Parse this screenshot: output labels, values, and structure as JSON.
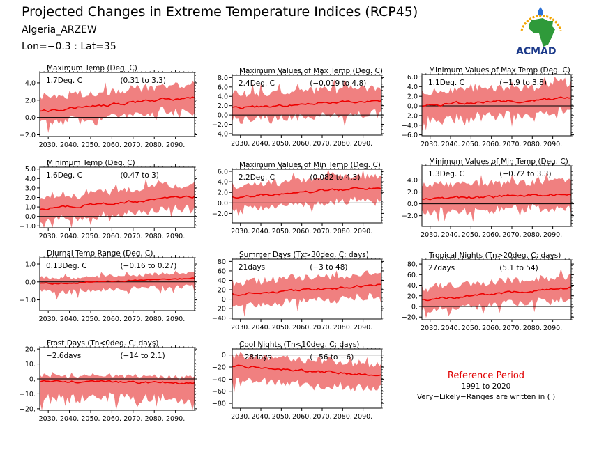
{
  "header": {
    "title": "Projected Changes in Extreme Temperature Indices (RCP45)",
    "location": "Algeria_ARZEW",
    "coords": "Lon=−0.3 : Lat=35"
  },
  "logo": {
    "text": "ACMAD"
  },
  "reference": {
    "title": "Reference Period",
    "period": "1991 to 2020",
    "note": "Very−Likely−Ranges are written in ( )"
  },
  "colors": {
    "band": "#f08080",
    "line": "#ee0000",
    "zero": "#000000"
  },
  "chart_data": [
    {
      "type": "area",
      "title": "Maximum Temp (Deg. C)",
      "value_label": "1.7Deg. C",
      "range_label": "(0.31 to 3.3)",
      "x_start": 2026,
      "x_end": 2099,
      "xticks": [
        2030,
        2040,
        2050,
        2060,
        2070,
        2080,
        2090
      ],
      "xtick_labels": [
        "2030.",
        "2040.",
        "2050.",
        "2060.",
        "2070.",
        "2080.",
        "2090."
      ],
      "ylim": [
        -2.2,
        5.2
      ],
      "yticks": [
        -2,
        0,
        2,
        4
      ],
      "ytick_labels": [
        "−2.0",
        "0.0",
        "2.0",
        "4.0"
      ],
      "mean_start": 0.7,
      "mean_end": 2.4,
      "lower_offset": 1.4,
      "upper_offset": 1.5,
      "seed": 1
    },
    {
      "type": "area",
      "title": "Maximum Values of Max Temp (Deg. C)",
      "value_label": "2.4Deg. C",
      "range_label": "(−0.019 to 4.8)",
      "x_start": 2026,
      "x_end": 2099,
      "xticks": [
        2030,
        2040,
        2050,
        2060,
        2070,
        2080,
        2090
      ],
      "xtick_labels": [
        "2030.",
        "2040.",
        "2050.",
        "2060.",
        "2070.",
        "2080.",
        "2090."
      ],
      "ylim": [
        -4.3,
        8.5
      ],
      "yticks": [
        -4,
        -2,
        0,
        2,
        4,
        6,
        8
      ],
      "ytick_labels": [
        "−4.0",
        "−2.0",
        "0.0",
        "2.0",
        "4.0",
        "6.0",
        "8.0"
      ],
      "mean_start": 1.5,
      "mean_end": 3.2,
      "lower_offset": 2.6,
      "upper_offset": 2.8,
      "seed": 2
    },
    {
      "type": "area",
      "title": "Minimum Values of Max Temp (Deg. C)",
      "value_label": "1.1Deg. C",
      "range_label": "(−1.9 to 3.8)",
      "x_start": 2026,
      "x_end": 2099,
      "xticks": [
        2030,
        2040,
        2050,
        2060,
        2070,
        2080,
        2090
      ],
      "xtick_labels": [
        "2030.",
        "2040.",
        "2050.",
        "2060.",
        "2070.",
        "2080.",
        "2090."
      ],
      "ylim": [
        -6.2,
        6.5
      ],
      "yticks": [
        -6,
        -4,
        -2,
        0,
        2,
        4,
        6
      ],
      "ytick_labels": [
        "−6.0",
        "−4.0",
        "−2.0",
        "0.0",
        "2.0",
        "4.0",
        "6.0"
      ],
      "mean_start": 0.2,
      "mean_end": 1.6,
      "lower_offset": 2.8,
      "upper_offset": 2.8,
      "seed": 3
    },
    {
      "type": "area",
      "title": "Minimum Temp (Deg. C)",
      "value_label": "1.6Deg. C",
      "range_label": "(0.47 to 3)",
      "x_start": 2026,
      "x_end": 2099,
      "xticks": [
        2030,
        2040,
        2050,
        2060,
        2070,
        2080,
        2090
      ],
      "xtick_labels": [
        "2030.",
        "2040.",
        "2050.",
        "2060.",
        "2070.",
        "2080.",
        "2090."
      ],
      "ylim": [
        -1.2,
        5.2
      ],
      "yticks": [
        -1,
        0,
        1,
        2,
        3,
        4,
        5
      ],
      "ytick_labels": [
        "−1.0",
        "0.0",
        "1.0",
        "2.0",
        "3.0",
        "4.0",
        "5.0"
      ],
      "mean_start": 0.8,
      "mean_end": 2.1,
      "lower_offset": 1.2,
      "upper_offset": 1.3,
      "seed": 4
    },
    {
      "type": "area",
      "title": "Maximum Values of Min Temp (Deg. C)",
      "value_label": "2.2Deg. C",
      "range_label": "(0.082 to 4.3)",
      "x_start": 2026,
      "x_end": 2099,
      "xticks": [
        2030,
        2040,
        2050,
        2060,
        2070,
        2080,
        2090
      ],
      "xtick_labels": [
        "2030.",
        "2040.",
        "2050.",
        "2060.",
        "2070.",
        "2080.",
        "2090."
      ],
      "ylim": [
        -3.8,
        6.4
      ],
      "yticks": [
        -2,
        0,
        2,
        4,
        6
      ],
      "ytick_labels": [
        "−2.0",
        "0.0",
        "2.0",
        "4.0",
        "6.0"
      ],
      "mean_start": 1.2,
      "mean_end": 2.9,
      "lower_offset": 2.3,
      "upper_offset": 2.3,
      "seed": 5
    },
    {
      "type": "area",
      "title": "Minimum Values of Min Temp (Deg. C)",
      "value_label": "1.3Deg. C",
      "range_label": "(−0.72 to 3.3)",
      "x_start": 2026,
      "x_end": 2099,
      "xticks": [
        2030,
        2040,
        2050,
        2060,
        2070,
        2080,
        2090
      ],
      "xtick_labels": [
        "2030.",
        "2040.",
        "2050.",
        "2060.",
        "2070.",
        "2080.",
        "2090."
      ],
      "ylim": [
        -3.8,
        6.4
      ],
      "yticks": [
        -2,
        0,
        2,
        4
      ],
      "ytick_labels": [
        "−2.0",
        "0.0",
        "2.0",
        "4.0"
      ],
      "mean_start": 0.8,
      "mean_end": 1.6,
      "lower_offset": 2.2,
      "upper_offset": 2.2,
      "seed": 6
    },
    {
      "type": "area",
      "title": "Diurnal Temp Range (Deg. C)",
      "value_label": "0.13Deg. C",
      "range_label": "(−0.16 to 0.27)",
      "x_start": 2026,
      "x_end": 2099,
      "xticks": [
        2030,
        2040,
        2050,
        2060,
        2070,
        2080,
        2090
      ],
      "xtick_labels": [
        "2030.",
        "2040.",
        "2050.",
        "2060.",
        "2070.",
        "2080.",
        "2090."
      ],
      "ylim": [
        -1.6,
        1.35
      ],
      "yticks": [
        -1,
        0,
        1
      ],
      "ytick_labels": [
        "−1.0",
        "0.0",
        "1.0"
      ],
      "mean_start": -0.1,
      "mean_end": 0.2,
      "lower_offset": 0.45,
      "upper_offset": 0.3,
      "seed": 7
    },
    {
      "type": "area",
      "title": "Summer Days (Tx>30deg. C; days)",
      "value_label": "21days",
      "range_label": "(−3 to 48)",
      "x_start": 2026,
      "x_end": 2099,
      "xticks": [
        2030,
        2040,
        2050,
        2060,
        2070,
        2080,
        2090
      ],
      "xtick_labels": [
        "2030.",
        "2040.",
        "2050.",
        "2060.",
        "2070.",
        "2080.",
        "2090."
      ],
      "ylim": [
        -42,
        85
      ],
      "yticks": [
        -40,
        -20,
        0,
        20,
        40,
        60,
        80
      ],
      "ytick_labels": [
        "−40.",
        "−20.",
        "0.",
        "20.",
        "40.",
        "60.",
        "80."
      ],
      "mean_start": 10,
      "mean_end": 30,
      "lower_offset": 24,
      "upper_offset": 26,
      "seed": 8
    },
    {
      "type": "area",
      "title": "Tropical Nights (Tn>20deg. C; days)",
      "value_label": "27days",
      "range_label": "(5.1 to 54)",
      "x_start": 2026,
      "x_end": 2099,
      "xticks": [
        2030,
        2040,
        2050,
        2060,
        2070,
        2080,
        2090
      ],
      "xtick_labels": [
        "2030.",
        "2040.",
        "2050.",
        "2060.",
        "2070.",
        "2080.",
        "2090."
      ],
      "ylim": [
        -25,
        88
      ],
      "yticks": [
        -20,
        0,
        20,
        40,
        60,
        80
      ],
      "ytick_labels": [
        "−20.",
        "0.",
        "20.",
        "40.",
        "60.",
        "80."
      ],
      "mean_start": 12,
      "mean_end": 35,
      "lower_offset": 20,
      "upper_offset": 22,
      "seed": 9
    },
    {
      "type": "area",
      "title": "Frost Days (Tn<0deg. C; days)",
      "value_label": "−2.6days",
      "range_label": "(−14 to 2.1)",
      "x_start": 2026,
      "x_end": 2099,
      "xticks": [
        2030,
        2040,
        2050,
        2060,
        2070,
        2080,
        2090
      ],
      "xtick_labels": [
        "2030.",
        "2040.",
        "2050.",
        "2060.",
        "2070.",
        "2080.",
        "2090."
      ],
      "ylim": [
        -21,
        21
      ],
      "yticks": [
        -20,
        -10,
        0,
        10,
        20
      ],
      "ytick_labels": [
        "−20.",
        "−10.",
        "0.",
        "10.",
        "20."
      ],
      "mean_start": -1.5,
      "mean_end": -3,
      "lower_offset": 11,
      "upper_offset": 4,
      "seed": 10
    },
    {
      "type": "area",
      "title": "Cool Nights (Tn<10deg. C; days)",
      "value_label": "−28days",
      "range_label": "(−56 to −6)",
      "x_start": 2026,
      "x_end": 2099,
      "xticks": [
        2030,
        2040,
        2050,
        2060,
        2070,
        2080,
        2090
      ],
      "xtick_labels": [
        "2030.",
        "2040.",
        "2050.",
        "2060.",
        "2070.",
        "2080.",
        "2090."
      ],
      "ylim": [
        -88,
        10
      ],
      "yticks": [
        -80,
        -60,
        -40,
        -20,
        0
      ],
      "ytick_labels": [
        "−80.",
        "−60.",
        "−40.",
        "−20.",
        "0."
      ],
      "mean_start": -18,
      "mean_end": -34,
      "lower_offset": 22,
      "upper_offset": 18,
      "seed": 11
    }
  ]
}
